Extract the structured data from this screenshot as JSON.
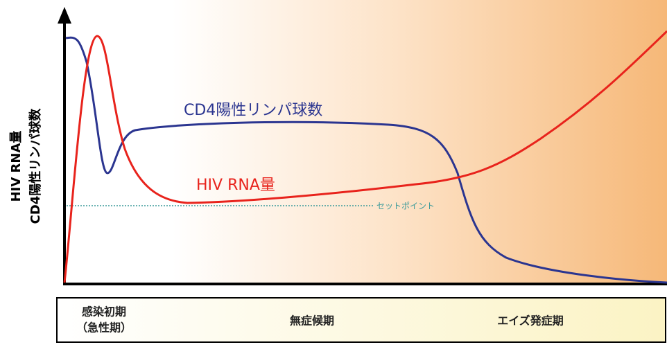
{
  "y_axis": {
    "labels": [
      "HIV RNA量",
      "CD4陽性リンパ球数"
    ]
  },
  "curves": {
    "cd4": {
      "label": "CD4陽性リンパ球数"
    },
    "hiv": {
      "label": "HIV RNA量"
    },
    "set_point": {
      "label": "セットポイント"
    }
  },
  "phases": [
    {
      "lines": [
        "感染初期",
        "（急性期）"
      ]
    },
    {
      "lines": [
        "無症候期"
      ]
    },
    {
      "lines": [
        "エイズ発症期"
      ]
    }
  ]
}
